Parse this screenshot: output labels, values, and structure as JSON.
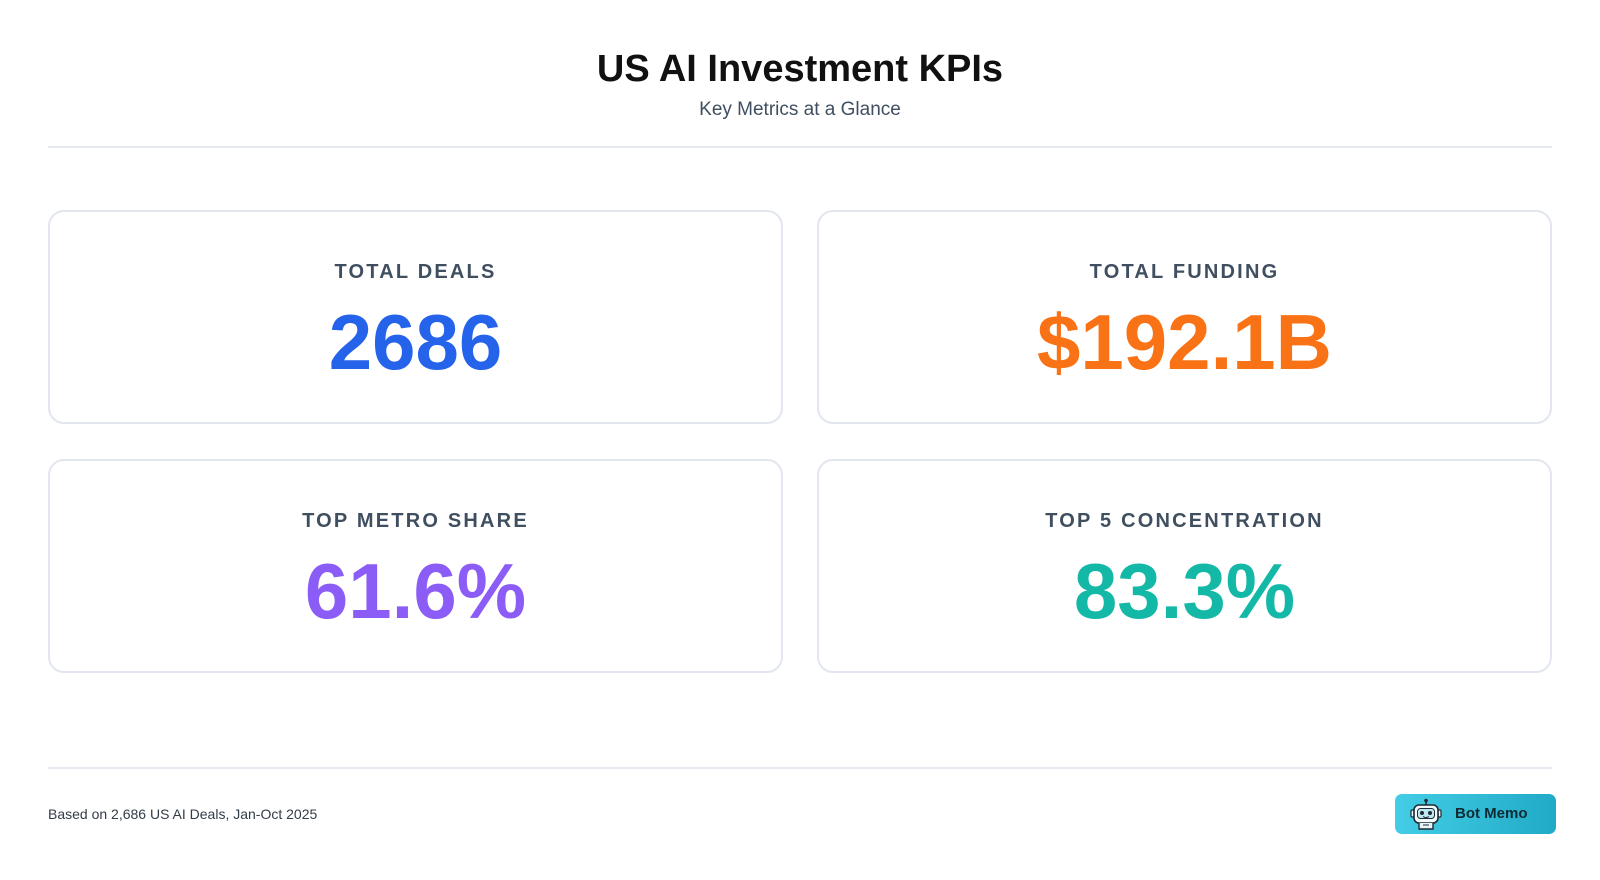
{
  "chart_data": {
    "type": "table",
    "title": "US AI Investment KPIs",
    "subtitle": "Key Metrics at a Glance",
    "kpis": [
      {
        "label": "TOTAL DEALS",
        "display": "2686",
        "value": 2686,
        "color": "#2563eb"
      },
      {
        "label": "TOTAL FUNDING",
        "display": "$192.1B",
        "value": 192.1,
        "color": "#f97316"
      },
      {
        "label": "TOP METRO SHARE",
        "display": "61.6%",
        "value": 61.6,
        "color": "#8b5cf6"
      },
      {
        "label": "TOP 5 CONCENTRATION",
        "display": "83.3%",
        "value": 83.3,
        "color": "#14b8a6"
      }
    ]
  },
  "footer": {
    "note": "Based on 2,686 US AI Deals, Jan-Oct 2025",
    "brand_name": "Bot Memo",
    "brand_icon": "robot-icon"
  }
}
